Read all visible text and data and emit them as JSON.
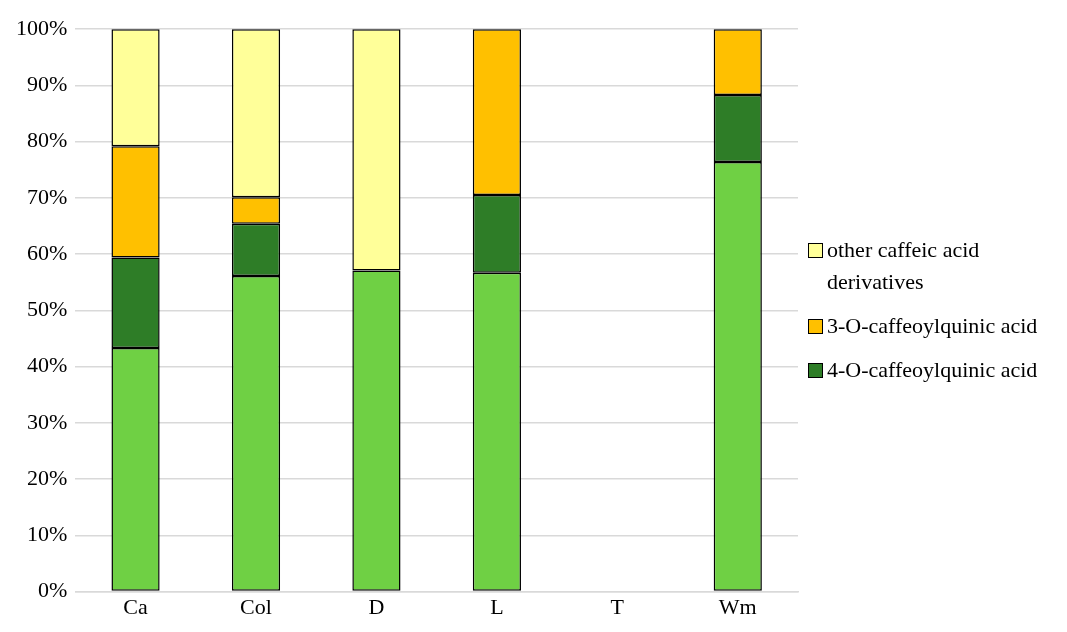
{
  "chart_data": {
    "type": "bar",
    "stacked": true,
    "categories": [
      "Ca",
      "Col",
      "D",
      "L",
      "T",
      "Wm"
    ],
    "series": [
      {
        "color": "#6fd044",
        "values": [
          43.3,
          56.1,
          57.1,
          56.7,
          null,
          76.4
        ]
      },
      {
        "name": "4-O-caffeoylquinic acid",
        "color": "#2e7d27",
        "values": [
          16.1,
          9.3,
          0,
          13.8,
          null,
          11.9
        ]
      },
      {
        "name": "3-O-caffeoylquinic acid",
        "color": "#ffc000",
        "values": [
          19.8,
          4.7,
          0,
          29.5,
          null,
          11.7
        ]
      },
      {
        "name": "other caffeic acid derivatives",
        "color": "#ffff99",
        "values": [
          20.8,
          29.9,
          42.9,
          0,
          null,
          0
        ]
      }
    ],
    "ylim": [
      0,
      100
    ],
    "yticks": [
      {
        "value": 0,
        "label": "0%"
      },
      {
        "value": 10,
        "label": "10%"
      },
      {
        "value": 20,
        "label": "20%"
      },
      {
        "value": 30,
        "label": "30%"
      },
      {
        "value": 40,
        "label": "40%"
      },
      {
        "value": 50,
        "label": "50%"
      },
      {
        "value": 60,
        "label": "60%"
      },
      {
        "value": 70,
        "label": "70%"
      },
      {
        "value": 80,
        "label": "80%"
      },
      {
        "value": 90,
        "label": "90%"
      },
      {
        "value": 100,
        "label": "100%"
      }
    ],
    "grid": "y",
    "legend": "right"
  }
}
